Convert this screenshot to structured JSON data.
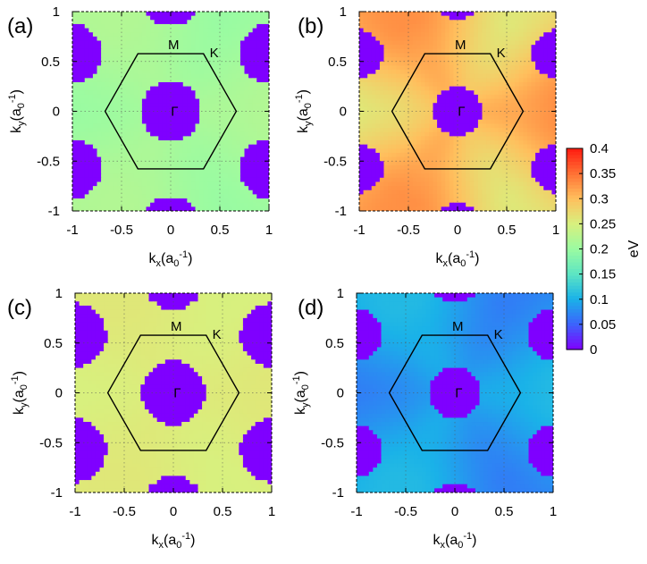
{
  "chart_data": {
    "type": "heatmap",
    "units": "eV",
    "colorbar": {
      "label": "eV",
      "range": [
        0,
        0.4
      ],
      "ticks": [
        "0.4",
        "0.35",
        "0.3",
        "0.25",
        "0.2",
        "0.15",
        "0.1",
        "0.05",
        "0"
      ],
      "colors": [
        "#7f00ff",
        "#3c63fc",
        "#1ab2e8",
        "#5de5c3",
        "#9bfba1",
        "#d8f07e",
        "#ffbf5d",
        "#ff7034",
        "#ff1a10"
      ]
    },
    "x_ticks": [
      "-1",
      "-0.5",
      "0",
      "0.5",
      "1"
    ],
    "y_ticks": [
      "1",
      "0.5",
      "0",
      "-0.5",
      "-1"
    ],
    "xlim": [
      -1,
      1
    ],
    "ylim": [
      -1,
      1
    ],
    "points": {
      "gamma": "Γ",
      "m": "M",
      "k": "K"
    },
    "brillouin_zone_radius": 0.667,
    "panels": [
      {
        "label": "(a)",
        "gap_value": 0.21,
        "hole_radius": 0.3,
        "variation": 0.01
      },
      {
        "label": "(b)",
        "gap_value": 0.3,
        "hole_radius": 0.24,
        "variation": 0.035
      },
      {
        "label": "(c)",
        "gap_value": 0.255,
        "hole_radius": 0.32,
        "variation": 0.005
      },
      {
        "label": "(d)",
        "gap_value": 0.09,
        "hole_radius": 0.26,
        "variation": 0.02
      }
    ]
  },
  "axes": {
    "xlabel": {
      "main": "k",
      "sub": "x",
      "open": "(a",
      "sub2": "0",
      "sup": "-1",
      "close": ")"
    },
    "ylabel": {
      "main": "k",
      "sub": "y",
      "open": "(a",
      "sub2": "0",
      "sup": "-1",
      "close": ")"
    }
  }
}
